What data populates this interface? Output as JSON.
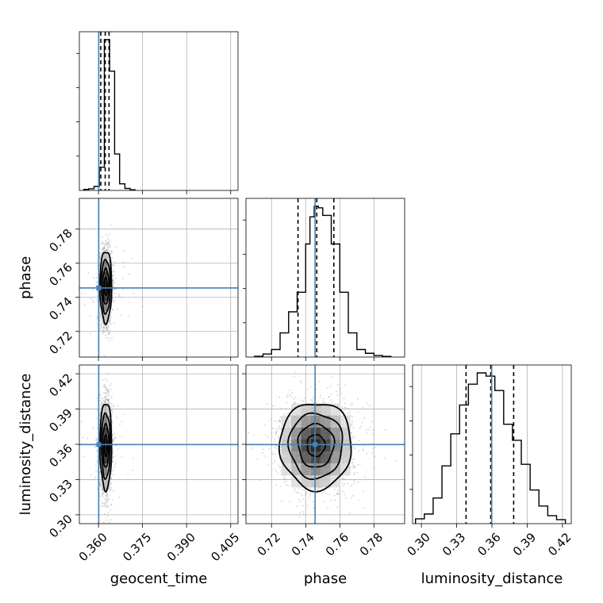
{
  "chart_data": {
    "type": "corner",
    "parameters": [
      "geocent_time",
      "phase",
      "luminosity_distance"
    ],
    "labels": {
      "x": [
        "geocent_time",
        "phase",
        "luminosity_distance"
      ],
      "y": [
        "phase",
        "luminosity_distance"
      ]
    },
    "ranges": {
      "geocent_time": [
        0.3535,
        0.4075
      ],
      "phase": [
        0.705,
        0.798
      ],
      "luminosity_distance": [
        0.2925,
        0.4275
      ]
    },
    "ticks": {
      "geocent_time": [
        0.36,
        0.375,
        0.39,
        0.405
      ],
      "phase": [
        0.72,
        0.74,
        0.76,
        0.78
      ],
      "luminosity_distance": [
        0.3,
        0.33,
        0.36,
        0.39,
        0.42
      ]
    },
    "tick_labels": {
      "geocent_time": [
        "0.360",
        "0.375",
        "0.390",
        "0.405"
      ],
      "phase": [
        "0.72",
        "0.74",
        "0.76",
        "0.78"
      ],
      "luminosity_distance": [
        "0.30",
        "0.33",
        "0.36",
        "0.39",
        "0.42"
      ]
    },
    "truths": {
      "geocent_time": 0.3601,
      "phase": 0.7455,
      "luminosity_distance": 0.3598
    },
    "quantiles": {
      "geocent_time": [
        0.3608,
        0.3623,
        0.3636
      ],
      "phase": [
        0.7355,
        0.7465,
        0.7565
      ],
      "luminosity_distance": [
        0.338,
        0.359,
        0.3785
      ]
    },
    "histograms": {
      "geocent_time": {
        "bin_edges": [
          0.355,
          0.3567,
          0.3585,
          0.3603,
          0.362,
          0.3638,
          0.3655,
          0.3672,
          0.369,
          0.3708,
          0.3725
        ],
        "counts": [
          0.006,
          0.01,
          0.024,
          0.14,
          0.91,
          0.72,
          0.22,
          0.04,
          0.012,
          0.004
        ]
      },
      "phase": {
        "bin_edges": [
          0.71,
          0.715,
          0.72,
          0.725,
          0.73,
          0.735,
          0.74,
          0.7425,
          0.745,
          0.7475,
          0.75,
          0.755,
          0.76,
          0.765,
          0.77,
          0.775,
          0.78,
          0.785,
          0.79
        ],
        "counts": [
          0.005,
          0.02,
          0.05,
          0.16,
          0.3,
          0.43,
          0.75,
          0.93,
          1.0,
          0.99,
          0.94,
          0.75,
          0.43,
          0.16,
          0.05,
          0.025,
          0.01,
          0.004
        ]
      },
      "luminosity_distance": {
        "bin_edges": [
          0.295,
          0.3025,
          0.31,
          0.3175,
          0.325,
          0.3325,
          0.34,
          0.3475,
          0.355,
          0.3625,
          0.37,
          0.3775,
          0.385,
          0.3925,
          0.4,
          0.4075,
          0.415,
          0.4225
        ],
        "counts": [
          0.03,
          0.06,
          0.16,
          0.36,
          0.56,
          0.74,
          0.87,
          0.94,
          0.92,
          0.83,
          0.62,
          0.52,
          0.37,
          0.21,
          0.11,
          0.05,
          0.025
        ]
      }
    },
    "posterior_2d": {
      "geocent_time__phase": {
        "mean": [
          0.3625,
          0.7465
        ],
        "sd": [
          0.001,
          0.0105
        ],
        "levels_sd": [
          0.5,
          1.0,
          1.5,
          2.0
        ]
      },
      "geocent_time__luminosity_distance": {
        "mean": [
          0.3625,
          0.359
        ],
        "sd": [
          0.001,
          0.0185
        ],
        "levels_sd": [
          0.5,
          1.0,
          1.5,
          2.0
        ]
      },
      "phase__luminosity_distance": {
        "mean": [
          0.746,
          0.359
        ],
        "sd": [
          0.0105,
          0.0185
        ],
        "levels_sd": [
          0.5,
          1.0,
          1.5,
          2.0
        ]
      }
    },
    "colors": {
      "truth": "#4682b4",
      "histogram": "#000000",
      "quantile": "#000000",
      "grid": "#b0b0b0",
      "samples": "#999999",
      "density": "#000000"
    },
    "grid": true
  }
}
